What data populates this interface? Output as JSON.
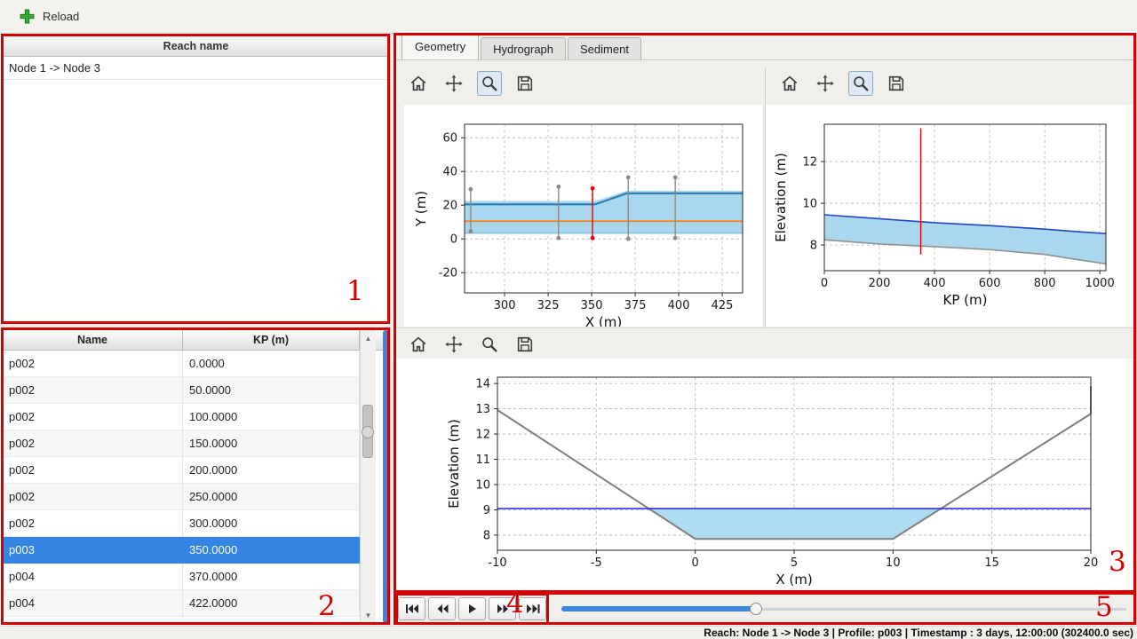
{
  "app": {
    "toolbar": {
      "reload_label": "Reload"
    },
    "status_bar": "Reach: Node 1 -> Node 3 | Profile: p003 | Timestamp : 3 days, 12:00:00 (302400.0 sec)"
  },
  "reach_list": {
    "header": "Reach name",
    "items": [
      "Node 1 -> Node 3"
    ]
  },
  "profile_table": {
    "headers": [
      "Name",
      "KP (m)"
    ],
    "rows": [
      [
        "p002",
        "0.0000"
      ],
      [
        "p002",
        "50.0000"
      ],
      [
        "p002",
        "100.0000"
      ],
      [
        "p002",
        "150.0000"
      ],
      [
        "p002",
        "200.0000"
      ],
      [
        "p002",
        "250.0000"
      ],
      [
        "p002",
        "300.0000"
      ],
      [
        "p003",
        "350.0000"
      ],
      [
        "p004",
        "370.0000"
      ],
      [
        "p004",
        "422.0000"
      ]
    ],
    "selected_row": 7
  },
  "tabs": {
    "items": [
      "Geometry",
      "Hydrograph",
      "Sediment"
    ],
    "active_index": 0
  },
  "mpl_toolbars": [
    {
      "icons": [
        "home",
        "pan",
        "zoom",
        "save"
      ],
      "active_tool": "zoom"
    },
    {
      "icons": [
        "home",
        "pan",
        "zoom",
        "save"
      ],
      "active_tool": "zoom"
    },
    {
      "icons": [
        "home",
        "pan",
        "zoom",
        "save"
      ],
      "active_tool": null
    }
  ],
  "playback": {
    "icons": [
      "skip-start",
      "rewind",
      "play",
      "fast-forward",
      "skip-end"
    ]
  },
  "time_slider": {
    "fraction": 0.345,
    "accent_color": "#3b86e0"
  },
  "annotations": {
    "color": "#d60000",
    "labels": [
      "1",
      "2",
      "3",
      "4",
      "5"
    ]
  },
  "chart_data": [
    {
      "type": "line",
      "name": "plan-view",
      "xlabel": "X (m)",
      "ylabel": "Y (m)",
      "xlim": [
        277,
        436.7
      ],
      "ylim": [
        -32,
        68
      ],
      "xticks": [
        300,
        325,
        350,
        375,
        400,
        425
      ],
      "yticks": [
        -20,
        0,
        20,
        40,
        60
      ],
      "fills": [
        {
          "x": [
            277,
            352,
            370,
            436.7
          ],
          "ytop": [
            22.5,
            22.5,
            28.5,
            28.5
          ],
          "ybot": [
            3,
            3,
            3,
            3
          ],
          "color": "#a9d7ee"
        }
      ],
      "series": [
        {
          "name": "left-bank",
          "x": [
            277,
            352,
            370,
            436.7
          ],
          "y": [
            20.5,
            20.5,
            27,
            27
          ],
          "color": "#2d7fb8",
          "width": 2.2
        },
        {
          "name": "right-bank",
          "x": [
            277,
            436.7
          ],
          "y": [
            3.5,
            3.5
          ],
          "color": "#8ec6e2",
          "width": 1.8
        },
        {
          "name": "centerline",
          "x": [
            277,
            436.7
          ],
          "y": [
            10.5,
            10.5
          ],
          "color": "#ff7f0e",
          "width": 1.8
        }
      ],
      "vlines": [
        {
          "name": "section",
          "x": 280.5,
          "y0": 4.5,
          "y1": 29.5,
          "color": "#8a8a8a",
          "dots": true
        },
        {
          "name": "section",
          "x": 331,
          "y0": 0.5,
          "y1": 31,
          "color": "#8a8a8a",
          "dots": true
        },
        {
          "name": "selected-section",
          "x": 350.5,
          "y0": 0.5,
          "y1": 30,
          "color": "#e8000b",
          "dots": true
        },
        {
          "name": "section",
          "x": 371,
          "y0": 0,
          "y1": 36.5,
          "color": "#8a8a8a",
          "dots": true
        },
        {
          "name": "section",
          "x": 398,
          "y0": 0.5,
          "y1": 36.5,
          "color": "#8a8a8a",
          "dots": true
        }
      ]
    },
    {
      "type": "line",
      "name": "long-profile",
      "xlabel": "KP (m)",
      "ylabel": "Elevation (m)",
      "xlim": [
        0,
        1022
      ],
      "ylim": [
        6.77,
        13.79
      ],
      "xticks": [
        0,
        200,
        400,
        600,
        800,
        1000
      ],
      "yticks": [
        8,
        10,
        12
      ],
      "fills": [
        {
          "x": [
            0,
            200,
            400,
            600,
            800,
            920,
            1022
          ],
          "ytop": [
            9.45,
            9.26,
            9.07,
            8.93,
            8.76,
            8.64,
            8.55
          ],
          "ybot": [
            8.25,
            8.05,
            7.92,
            7.78,
            7.55,
            7.3,
            7.1
          ],
          "color": "#a9d7ee"
        }
      ],
      "series": [
        {
          "name": "water-level",
          "x": [
            0,
            200,
            400,
            600,
            800,
            920,
            1022
          ],
          "y": [
            9.45,
            9.26,
            9.07,
            8.93,
            8.76,
            8.64,
            8.55
          ],
          "color": "#2244cc",
          "width": 1.6
        },
        {
          "name": "bed-level",
          "x": [
            0,
            200,
            400,
            600,
            800,
            920,
            1022
          ],
          "y": [
            8.25,
            8.05,
            7.92,
            7.78,
            7.55,
            7.3,
            7.1
          ],
          "color": "#8f8f8f",
          "width": 1.6
        }
      ],
      "vlines": [
        {
          "name": "current-profile",
          "x": 350,
          "y0": 7.55,
          "y1": 13.6,
          "color": "#e8000b",
          "dots": false
        }
      ]
    },
    {
      "type": "line",
      "name": "cross-section",
      "xlabel": "X (m)",
      "ylabel": "Elevation (m)",
      "xlim": [
        -10,
        20
      ],
      "ylim": [
        7.4,
        14.25
      ],
      "xticks": [
        -10,
        -5,
        0,
        5,
        10,
        15,
        20
      ],
      "yticks": [
        8,
        9,
        10,
        11,
        12,
        13,
        14
      ],
      "fills": [
        {
          "x": [
            -2.45,
            0,
            10,
            12.46
          ],
          "ytop": [
            9.05,
            9.05,
            9.05,
            9.05
          ],
          "ybot": [
            9.05,
            7.85,
            7.85,
            9.05
          ],
          "color": "#aedcf2"
        }
      ],
      "series": [
        {
          "name": "bed",
          "x": [
            -10,
            0,
            10,
            20,
            20
          ],
          "y": [
            12.95,
            7.85,
            7.85,
            12.8,
            13.9
          ],
          "color": "#7f7f7f",
          "width": 2
        },
        {
          "name": "water-level",
          "x": [
            -10,
            20
          ],
          "y": [
            9.05,
            9.05
          ],
          "color": "#2222dd",
          "width": 1.5
        }
      ],
      "vlines": []
    }
  ]
}
